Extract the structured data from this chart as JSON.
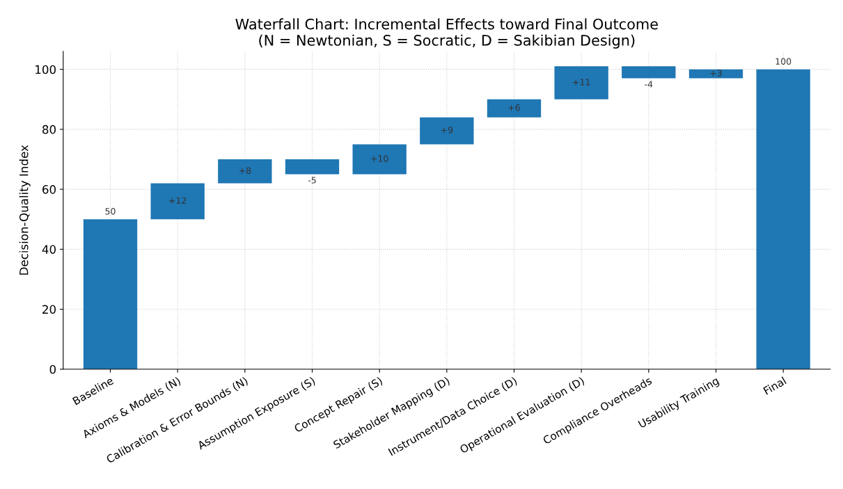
{
  "chart_data": {
    "type": "bar",
    "title": "Waterfall Chart: Incremental Effects toward Final Outcome\n(N = Newtonian, S = Socratic, D = Sakibian Design)",
    "ylabel": "Decision-Quality Index",
    "categories": [
      "Baseline",
      "Axioms & Models (N)",
      "Calibration & Error Bounds (N)",
      "Assumption Exposure (S)",
      "Concept Repair (S)",
      "Stakeholder Mapping (D)",
      "Instrument/Data Choice (D)",
      "Operational Evaluation (D)",
      "Compliance Overheads",
      "Usability Training",
      "Final"
    ],
    "values": [
      50,
      12,
      8,
      -5,
      10,
      9,
      6,
      11,
      -4,
      3,
      100
    ],
    "base": [
      0,
      50,
      62,
      70,
      65,
      75,
      84,
      90,
      101,
      97,
      0
    ],
    "value_labels": [
      "50",
      "+12",
      "+8",
      "-5",
      "+10",
      "+9",
      "+6",
      "+11",
      "-4",
      "+3",
      "100"
    ],
    "color": "#1f77b4",
    "ylim": [
      0,
      106
    ],
    "yticks": [
      0,
      20,
      40,
      60,
      80,
      100
    ],
    "grid": true
  }
}
